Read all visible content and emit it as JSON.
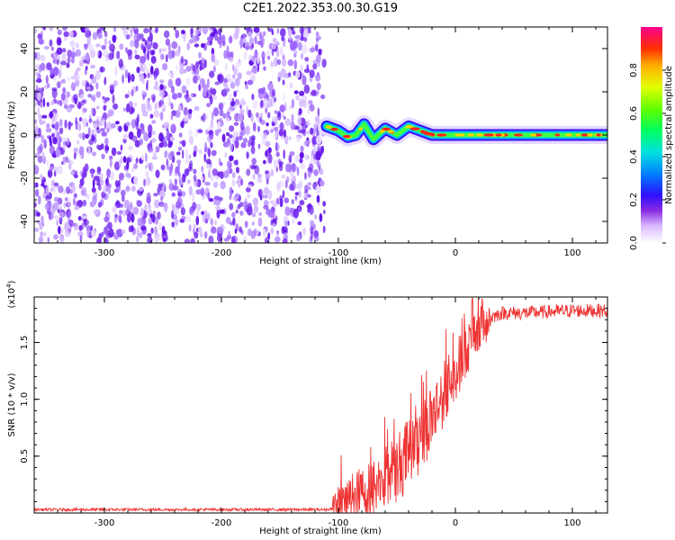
{
  "title": "C2E1.2022.353.00.30.G19",
  "chart_data": [
    {
      "type": "heatmap",
      "xlabel": "Height of straight line (km)",
      "ylabel": "Frequency (Hz)",
      "xlim": [
        -360,
        130
      ],
      "ylim": [
        -50,
        50
      ],
      "xticks": [
        -300,
        -200,
        -100,
        0,
        100
      ],
      "xtick_labels": [
        "-300",
        "-200",
        "-100",
        "0",
        "100"
      ],
      "yticks": [
        -40,
        -20,
        0,
        20,
        40
      ],
      "ytick_labels": [
        "-40",
        "-20",
        "0",
        "20",
        "40"
      ],
      "colorbar": {
        "label": "Normalized spectral amplitude",
        "range": [
          0,
          1
        ],
        "ticks": [
          0.0,
          0.2,
          0.4,
          0.6,
          0.8
        ],
        "tick_labels": [
          "0.0",
          "0.2",
          "0.4",
          "0.6",
          "0.8"
        ]
      },
      "noise_region_x": [
        -360,
        -112
      ],
      "signal_ridge": [
        {
          "x": -110,
          "y": 4
        },
        {
          "x": -100,
          "y": 2
        },
        {
          "x": -92,
          "y": -1
        },
        {
          "x": -85,
          "y": 0
        },
        {
          "x": -78,
          "y": 5
        },
        {
          "x": -70,
          "y": -2
        },
        {
          "x": -60,
          "y": 3
        },
        {
          "x": -50,
          "y": 0
        },
        {
          "x": -40,
          "y": 4
        },
        {
          "x": -30,
          "y": 2
        },
        {
          "x": -20,
          "y": 0
        },
        {
          "x": -10,
          "y": 0
        },
        {
          "x": 0,
          "y": 0
        },
        {
          "x": 50,
          "y": 0
        },
        {
          "x": 100,
          "y": 0
        },
        {
          "x": 130,
          "y": 0
        }
      ]
    },
    {
      "type": "line",
      "xlabel": "Height of straight line (km)",
      "ylabel": "SNR (10 * v/v)",
      "multiplier": "(x10",
      "multiplier_exp": "4",
      "xlim": [
        -360,
        130
      ],
      "ylim": [
        0,
        1.9
      ],
      "xticks": [
        -300,
        -200,
        -100,
        0,
        100
      ],
      "xtick_labels": [
        "-300",
        "-200",
        "-100",
        "0",
        "100"
      ],
      "yticks": [
        0.5,
        1.0,
        1.5
      ],
      "ytick_labels": [
        "0.5",
        "1.0",
        "1.5"
      ],
      "series": [
        {
          "color": "#ee3333",
          "x": [
            -360,
            -300,
            -250,
            -200,
            -150,
            -110,
            -100,
            -90,
            -80,
            -70,
            -60,
            -50,
            -40,
            -30,
            -20,
            -10,
            0,
            10,
            20,
            30,
            40,
            60,
            80,
            100,
            130
          ],
          "y": [
            0.03,
            0.03,
            0.03,
            0.03,
            0.03,
            0.03,
            0.05,
            0.12,
            0.18,
            0.22,
            0.32,
            0.38,
            0.55,
            0.68,
            0.85,
            1.05,
            1.25,
            1.45,
            1.62,
            1.72,
            1.76,
            1.76,
            1.77,
            1.78,
            1.78
          ]
        }
      ]
    }
  ]
}
